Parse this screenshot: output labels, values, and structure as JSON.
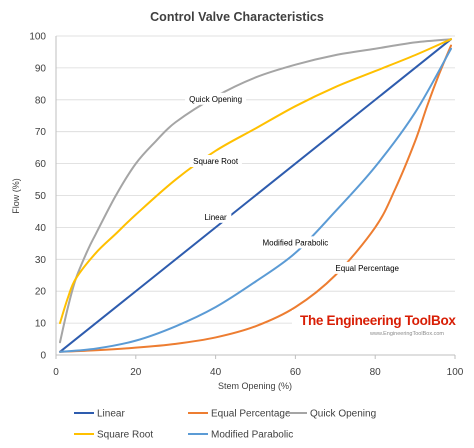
{
  "chart_data": {
    "type": "line",
    "title": "Control Valve Characteristics",
    "xlabel": "Stem Opening  (%)",
    "ylabel": "Flow (%)",
    "xlim": [
      0,
      100
    ],
    "ylim": [
      0,
      100
    ],
    "xticks": [
      0,
      20,
      40,
      60,
      80,
      100
    ],
    "yticks": [
      0,
      10,
      20,
      30,
      40,
      50,
      60,
      70,
      80,
      90,
      100
    ],
    "grid": "horizontal",
    "legend_position": "bottom",
    "series": [
      {
        "name": "Linear",
        "color": "#2e5cae",
        "annotation": "Linear",
        "x": [
          1,
          99
        ],
        "y": [
          1,
          99
        ]
      },
      {
        "name": "Equal Percentage",
        "color": "#ed7d31",
        "annotation": "Equal Percentage",
        "x": [
          1,
          10,
          20,
          30,
          40,
          50,
          60,
          70,
          80,
          85,
          90,
          93,
          96,
          99
        ],
        "y": [
          1,
          1.5,
          2.3,
          3.5,
          5.5,
          9,
          15,
          25,
          40,
          52,
          67,
          78,
          88,
          97
        ]
      },
      {
        "name": "Quick Opening",
        "color": "#a5a5a5",
        "annotation": "Quick Opening",
        "x": [
          1,
          3,
          5,
          8,
          10,
          15,
          20,
          25,
          30,
          40,
          50,
          60,
          70,
          80,
          90,
          99
        ],
        "y": [
          4,
          15,
          24,
          33,
          38,
          50,
          60,
          67,
          73,
          81,
          87,
          91,
          94,
          96,
          98,
          99
        ]
      },
      {
        "name": "Square Root",
        "color": "#ffc000",
        "annotation": "Square Root",
        "x": [
          1,
          3,
          5,
          10,
          15,
          20,
          30,
          40,
          50,
          60,
          70,
          80,
          90,
          99
        ],
        "y": [
          10,
          18,
          24,
          32,
          38,
          44,
          55,
          64,
          71,
          78,
          84,
          89,
          94,
          99
        ]
      },
      {
        "name": "Modified Parabolic",
        "color": "#5b9bd5",
        "annotation": "Modified Parabolic",
        "x": [
          1,
          10,
          20,
          30,
          40,
          50,
          60,
          70,
          80,
          90,
          99
        ],
        "y": [
          1,
          2,
          4.5,
          9,
          15,
          23,
          32,
          45,
          59,
          76,
          96
        ]
      }
    ]
  },
  "watermark": {
    "title": "The Engineering ToolBox",
    "subtitle": "www.EngineeringToolBox.com"
  }
}
